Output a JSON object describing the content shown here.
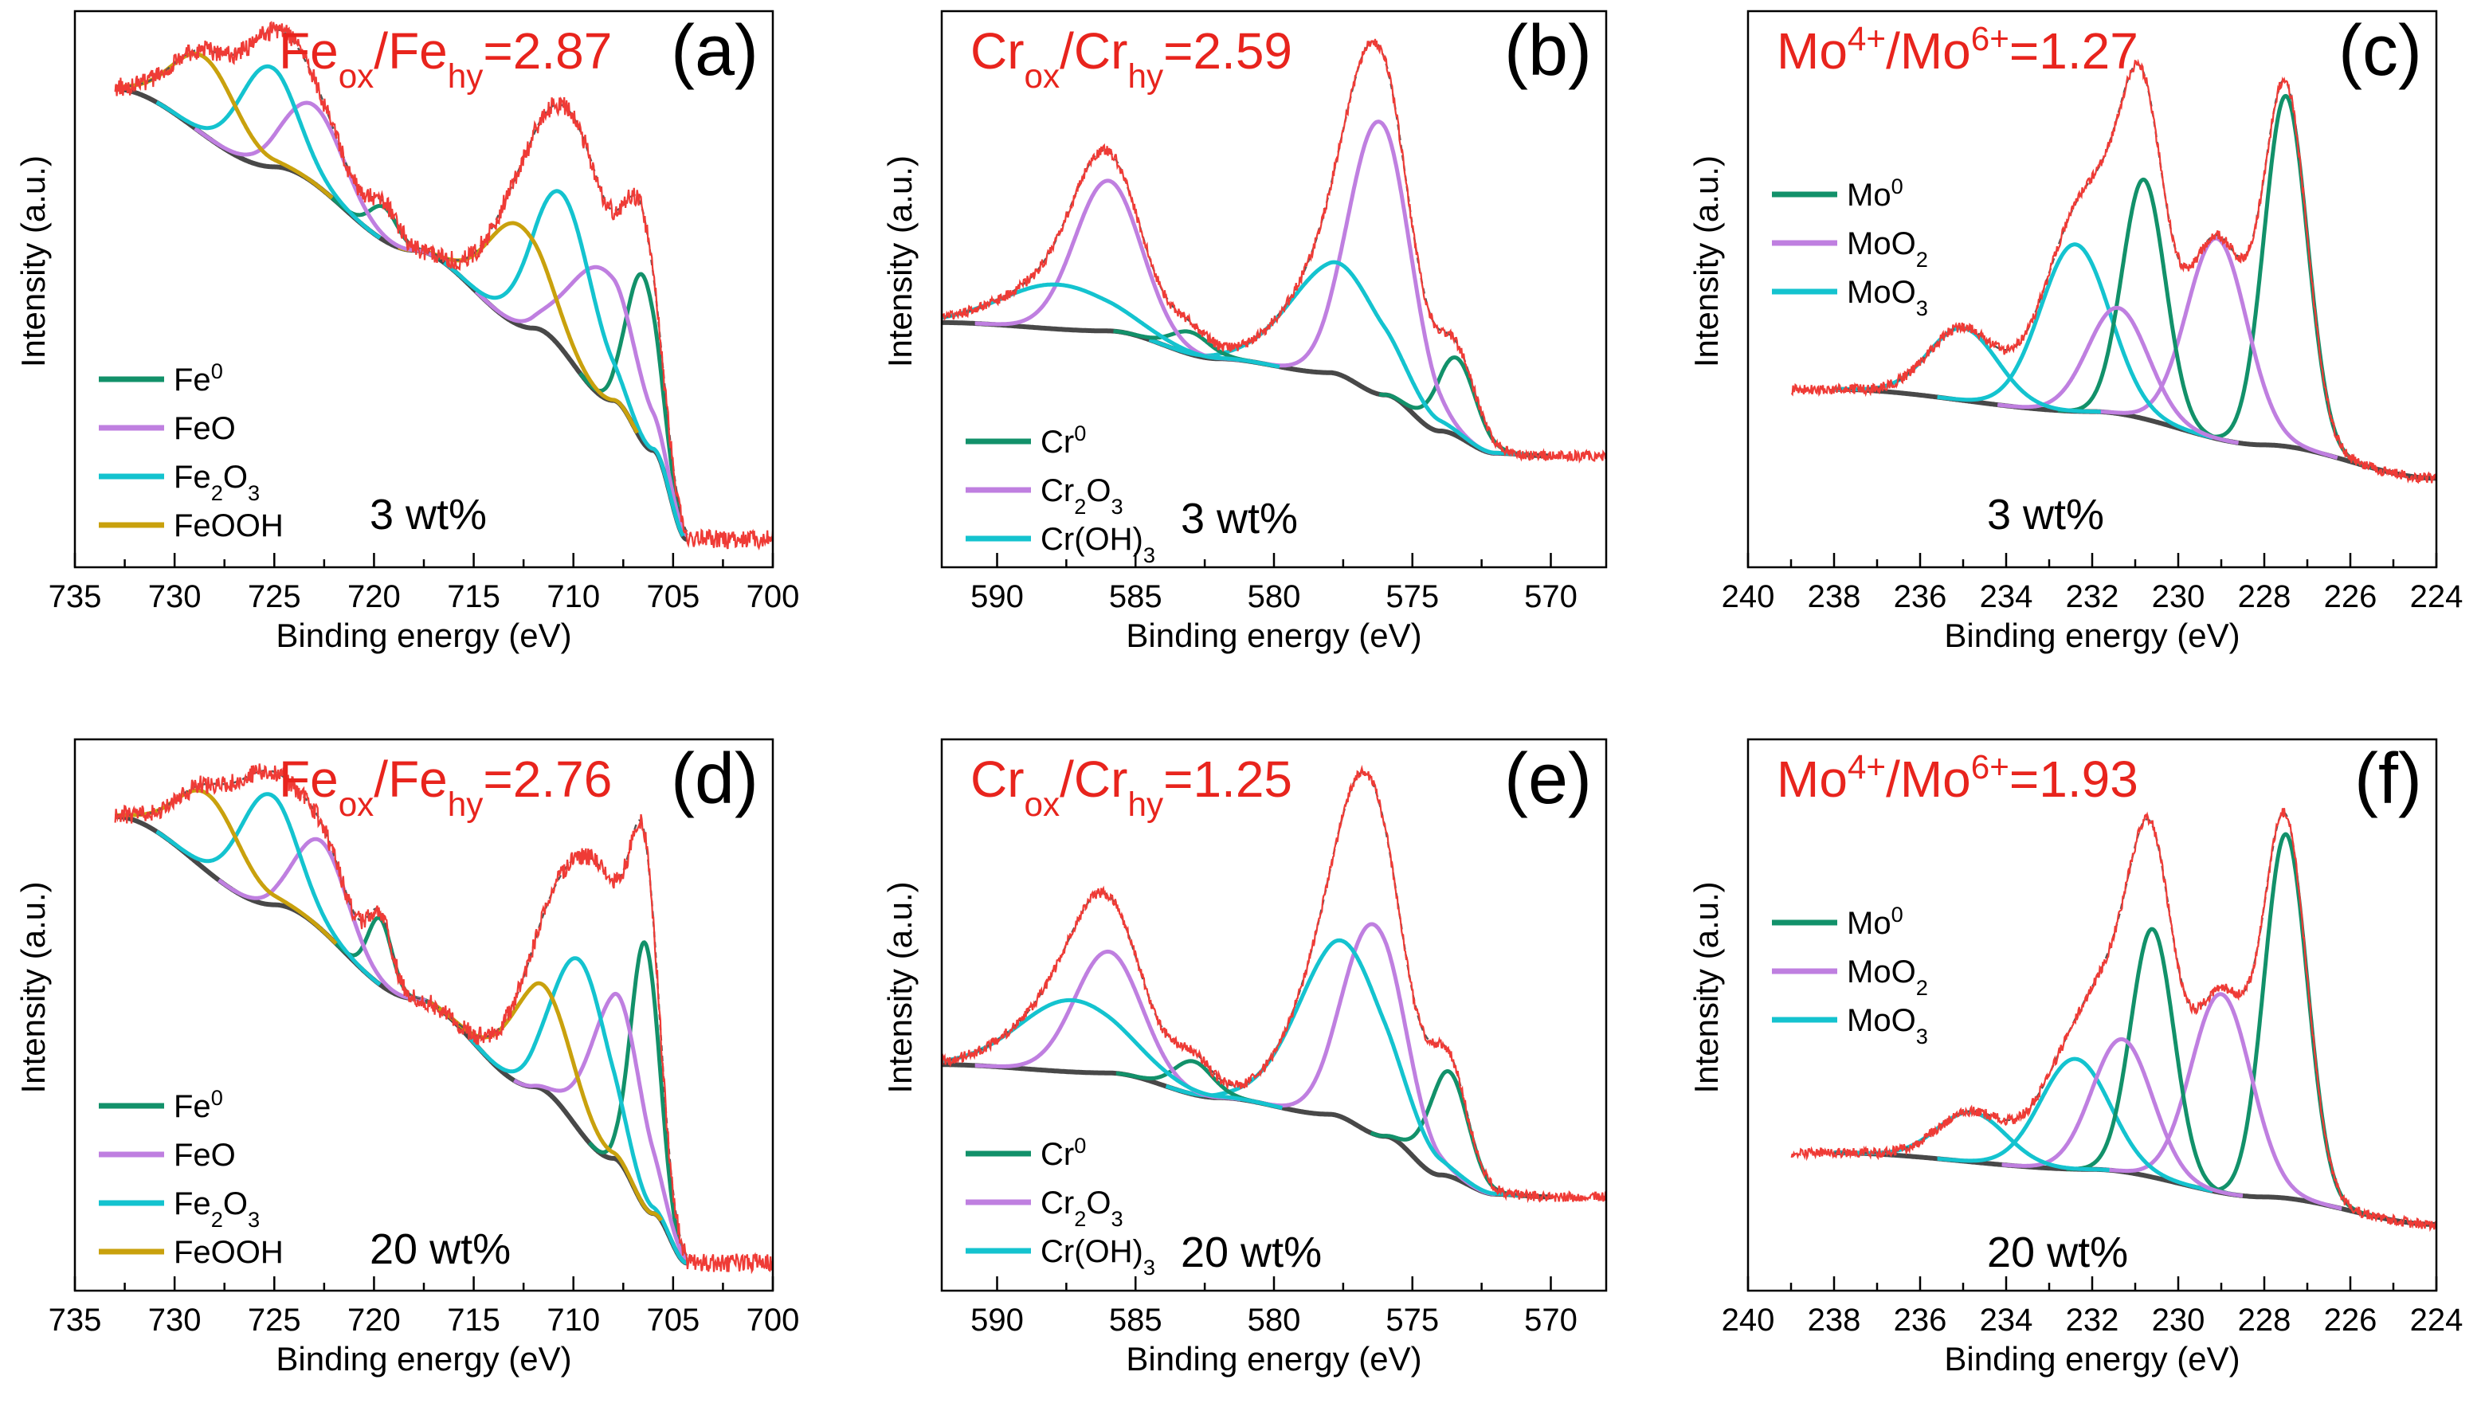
{
  "figure": {
    "common": {
      "xlabel": "Binding energy (eV)",
      "ylabel": "Intensity (a.u.)"
    },
    "colors": {
      "raw": "#ef3b36",
      "envelope": "#555555",
      "background": "#484848",
      "green": "#12916a",
      "purple": "#bf7fe0",
      "cyan": "#14c3cf",
      "gold": "#c9a10d",
      "ratio_text": "#e8241d",
      "axis": "#000000"
    }
  },
  "chart_data": [
    {
      "panel": "(a)",
      "type": "line",
      "ratio": {
        "base": "Fe",
        "sub1": "ox",
        "sep": "/",
        "base2": "Fe",
        "sub2": "hy",
        "value": "=2.87"
      },
      "sample": "3 wt%",
      "xlim": [
        735,
        700
      ],
      "ylim": [
        0,
        100
      ],
      "xticks": [
        735,
        730,
        725,
        720,
        715,
        710,
        705,
        700
      ],
      "xlabel": "Binding energy (eV)",
      "ylabel": "Intensity (a.u.)",
      "raw_range": [
        733,
        700
      ],
      "raw_noise": 1.7,
      "background": {
        "points": [
          [
            733,
            86
          ],
          [
            725,
            72
          ],
          [
            718,
            57
          ],
          [
            712,
            43
          ],
          [
            708,
            30
          ],
          [
            706,
            21
          ],
          [
            704.3,
            5
          ]
        ]
      },
      "components": [
        {
          "name": "Fe",
          "sup": "0",
          "color_key": "green",
          "center": 706.5,
          "height": 30,
          "width": 0.8
        },
        {
          "name": "FeO",
          "color_key": "purple",
          "center": 708.5,
          "height": 23,
          "width": 1.6
        },
        {
          "name": "Fe",
          "sub": "2",
          "name2": "O",
          "sub2": "3",
          "color_key": "cyan",
          "center": 710.5,
          "height": 28,
          "width": 1.5
        },
        {
          "name": "FeOOH",
          "color_key": "gold",
          "center": 712.8,
          "height": 18,
          "width": 1.5
        }
      ],
      "extra_peaks": [
        {
          "color_key": "green",
          "center": 719.5,
          "height": 6,
          "width": 0.7
        },
        {
          "color_key": "purple",
          "center": 723,
          "height": 14,
          "width": 1.5
        },
        {
          "color_key": "cyan",
          "center": 725.3,
          "height": 18,
          "width": 1.4
        },
        {
          "color_key": "gold",
          "center": 728.5,
          "height": 14,
          "width": 1.6
        }
      ]
    },
    {
      "panel": "(b)",
      "type": "line",
      "ratio": {
        "base": "Cr",
        "sub1": "ox",
        "sep": "/",
        "base2": "Cr",
        "sub2": "hy",
        "value": "=2.59"
      },
      "sample": "3 wt%",
      "xlim": [
        592,
        568
      ],
      "ylim": [
        0,
        100
      ],
      "xticks": [
        590,
        585,
        580,
        575,
        570
      ],
      "xlabel": "Binding energy (eV)",
      "ylabel": "Intensity (a.u.)",
      "raw_range": [
        592,
        568
      ],
      "raw_noise": 0.9,
      "background": {
        "points": [
          [
            592,
            44
          ],
          [
            586,
            42.5
          ],
          [
            582,
            37.5
          ],
          [
            578,
            35
          ],
          [
            576,
            31
          ],
          [
            574,
            24.5
          ],
          [
            572,
            20.5
          ],
          [
            570,
            20
          ]
        ]
      },
      "components": [
        {
          "name": "Cr",
          "sup": "0",
          "color_key": "green",
          "center": 573.4,
          "height": 14,
          "width": 0.7
        },
        {
          "name": "Cr",
          "sub": "2",
          "name2": "O",
          "sub2": "3",
          "color_key": "purple",
          "center": 576.2,
          "height": 49,
          "width": 1.1
        },
        {
          "name": "Cr(OH)",
          "sub": "3",
          "color_key": "cyan",
          "center": 577.7,
          "height": 20,
          "width": 1.7
        }
      ],
      "extra_peaks": [
        {
          "color_key": "green",
          "center": 583,
          "height": 4,
          "width": 0.7
        },
        {
          "color_key": "purple",
          "center": 586,
          "height": 27,
          "width": 1.2
        },
        {
          "color_key": "cyan",
          "center": 587.8,
          "height": 8,
          "width": 2.0
        }
      ]
    },
    {
      "panel": "(c)",
      "type": "line",
      "ratio": {
        "base": "Mo",
        "sup1": "4+",
        "sep": "/",
        "base2": "Mo",
        "sup2": "6+",
        "value": "=1.27"
      },
      "sample": "3 wt%",
      "xlim": [
        240,
        224
      ],
      "ylim": [
        0,
        100
      ],
      "xticks": [
        240,
        238,
        236,
        234,
        232,
        230,
        228,
        226,
        224
      ],
      "xlabel": "Binding energy (eV)",
      "ylabel": "Intensity (a.u.)",
      "raw_range": [
        239,
        224
      ],
      "raw_noise": 0.9,
      "background": {
        "points": [
          [
            238,
            32
          ],
          [
            232,
            28
          ],
          [
            228,
            22
          ],
          [
            224,
            16
          ]
        ]
      },
      "components": [
        {
          "name": "Mo",
          "sup": "0",
          "color_key": "green",
          "center": 227.5,
          "height": 63,
          "width": 0.5
        },
        {
          "name": "MoO",
          "sub": "2",
          "color_key": "purple",
          "center": 229.1,
          "height": 36,
          "width": 0.7
        },
        {
          "name": "MoO",
          "sub": "3",
          "color_key": "cyan",
          "center": 232.4,
          "height": 30,
          "width": 0.8
        }
      ],
      "extra_peaks": [
        {
          "color_key": "green",
          "center": 230.8,
          "height": 43,
          "width": 0.5
        },
        {
          "color_key": "purple",
          "center": 231.4,
          "height": 19,
          "width": 0.7
        },
        {
          "color_key": "cyan",
          "center": 235,
          "height": 13,
          "width": 0.8
        }
      ]
    },
    {
      "panel": "(d)",
      "type": "line",
      "ratio": {
        "base": "Fe",
        "sub1": "ox",
        "sep": "/",
        "base2": "Fe",
        "sub2": "hy",
        "value": "=2.76"
      },
      "sample": "20 wt%",
      "xlim": [
        735,
        700
      ],
      "ylim": [
        0,
        100
      ],
      "xticks": [
        735,
        730,
        725,
        720,
        715,
        710,
        705,
        700
      ],
      "xlabel": "Binding energy (eV)",
      "ylabel": "Intensity (a.u.)",
      "raw_range": [
        733,
        700
      ],
      "raw_noise": 1.7,
      "background": {
        "points": [
          [
            733,
            86
          ],
          [
            725,
            70
          ],
          [
            718,
            53
          ],
          [
            712,
            37
          ],
          [
            708,
            24
          ],
          [
            706,
            14
          ],
          [
            704.3,
            5
          ]
        ]
      },
      "components": [
        {
          "name": "Fe",
          "sup": "0",
          "color_key": "green",
          "center": 706.4,
          "height": 48,
          "width": 0.7
        },
        {
          "name": "FeO",
          "color_key": "purple",
          "center": 707.8,
          "height": 30,
          "width": 1.3
        },
        {
          "name": "Fe",
          "sub": "2",
          "name2": "O",
          "sub2": "3",
          "color_key": "cyan",
          "center": 709.6,
          "height": 31,
          "width": 1.4
        },
        {
          "name": "FeOOH",
          "color_key": "gold",
          "center": 711.6,
          "height": 19,
          "width": 1.5
        }
      ],
      "extra_peaks": [
        {
          "color_key": "green",
          "center": 719.7,
          "height": 12,
          "width": 0.6
        },
        {
          "color_key": "purple",
          "center": 722.6,
          "height": 16,
          "width": 1.3
        },
        {
          "color_key": "cyan",
          "center": 725.3,
          "height": 20,
          "width": 1.4
        },
        {
          "color_key": "gold",
          "center": 728.3,
          "height": 14,
          "width": 1.6
        }
      ]
    },
    {
      "panel": "(e)",
      "type": "line",
      "ratio": {
        "base": "Cr",
        "sub1": "ox",
        "sep": "/",
        "base2": "Cr",
        "sub2": "hy",
        "value": "=1.25"
      },
      "sample": "20 wt%",
      "xlim": [
        592,
        568
      ],
      "ylim": [
        0,
        100
      ],
      "xticks": [
        590,
        585,
        580,
        575,
        570
      ],
      "xlabel": "Binding energy (eV)",
      "ylabel": "Intensity (a.u.)",
      "raw_range": [
        592,
        568
      ],
      "raw_noise": 0.9,
      "background": {
        "points": [
          [
            592,
            41
          ],
          [
            586,
            39.5
          ],
          [
            582,
            35
          ],
          [
            578,
            32
          ],
          [
            576,
            28
          ],
          [
            574,
            21
          ],
          [
            572,
            17.5
          ],
          [
            570,
            17
          ]
        ]
      },
      "components": [
        {
          "name": "Cr",
          "sup": "0",
          "color_key": "green",
          "center": 573.7,
          "height": 19,
          "width": 0.7
        },
        {
          "name": "Cr",
          "sub": "2",
          "name2": "O",
          "sub2": "3",
          "color_key": "purple",
          "center": 576.4,
          "height": 38,
          "width": 1.1
        },
        {
          "name": "Cr(OH)",
          "sub": "3",
          "color_key": "cyan",
          "center": 577.5,
          "height": 32,
          "width": 1.6
        }
      ],
      "extra_peaks": [
        {
          "color_key": "green",
          "center": 582.9,
          "height": 6,
          "width": 0.7
        },
        {
          "color_key": "purple",
          "center": 586,
          "height": 22,
          "width": 1.2
        },
        {
          "color_key": "cyan",
          "center": 587.3,
          "height": 13,
          "width": 1.9
        }
      ]
    },
    {
      "panel": "(f)",
      "type": "line",
      "ratio": {
        "base": "Mo",
        "sup1": "4+",
        "sep": "/",
        "base2": "Mo",
        "sup2": "6+",
        "value": "=1.93"
      },
      "sample": "20 wt%",
      "xlim": [
        240,
        224
      ],
      "ylim": [
        0,
        100
      ],
      "xticks": [
        240,
        238,
        236,
        234,
        232,
        230,
        228,
        226,
        224
      ],
      "xlabel": "Binding energy (eV)",
      "ylabel": "Intensity (a.u.)",
      "raw_range": [
        239,
        224
      ],
      "raw_noise": 0.9,
      "background": {
        "points": [
          [
            238,
            25
          ],
          [
            232,
            22
          ],
          [
            228,
            17
          ],
          [
            224,
            12
          ]
        ]
      },
      "components": [
        {
          "name": "Mo",
          "sup": "0",
          "color_key": "green",
          "center": 227.5,
          "height": 66,
          "width": 0.5
        },
        {
          "name": "MoO",
          "sub": "2",
          "color_key": "purple",
          "center": 229,
          "height": 36,
          "width": 0.7
        },
        {
          "name": "MoO",
          "sub": "3",
          "color_key": "cyan",
          "center": 232.4,
          "height": 20,
          "width": 0.8
        }
      ],
      "extra_peaks": [
        {
          "color_key": "green",
          "center": 230.6,
          "height": 45,
          "width": 0.5
        },
        {
          "color_key": "purple",
          "center": 231.3,
          "height": 24,
          "width": 0.7
        },
        {
          "color_key": "cyan",
          "center": 234.8,
          "height": 9,
          "width": 0.8
        }
      ]
    }
  ]
}
